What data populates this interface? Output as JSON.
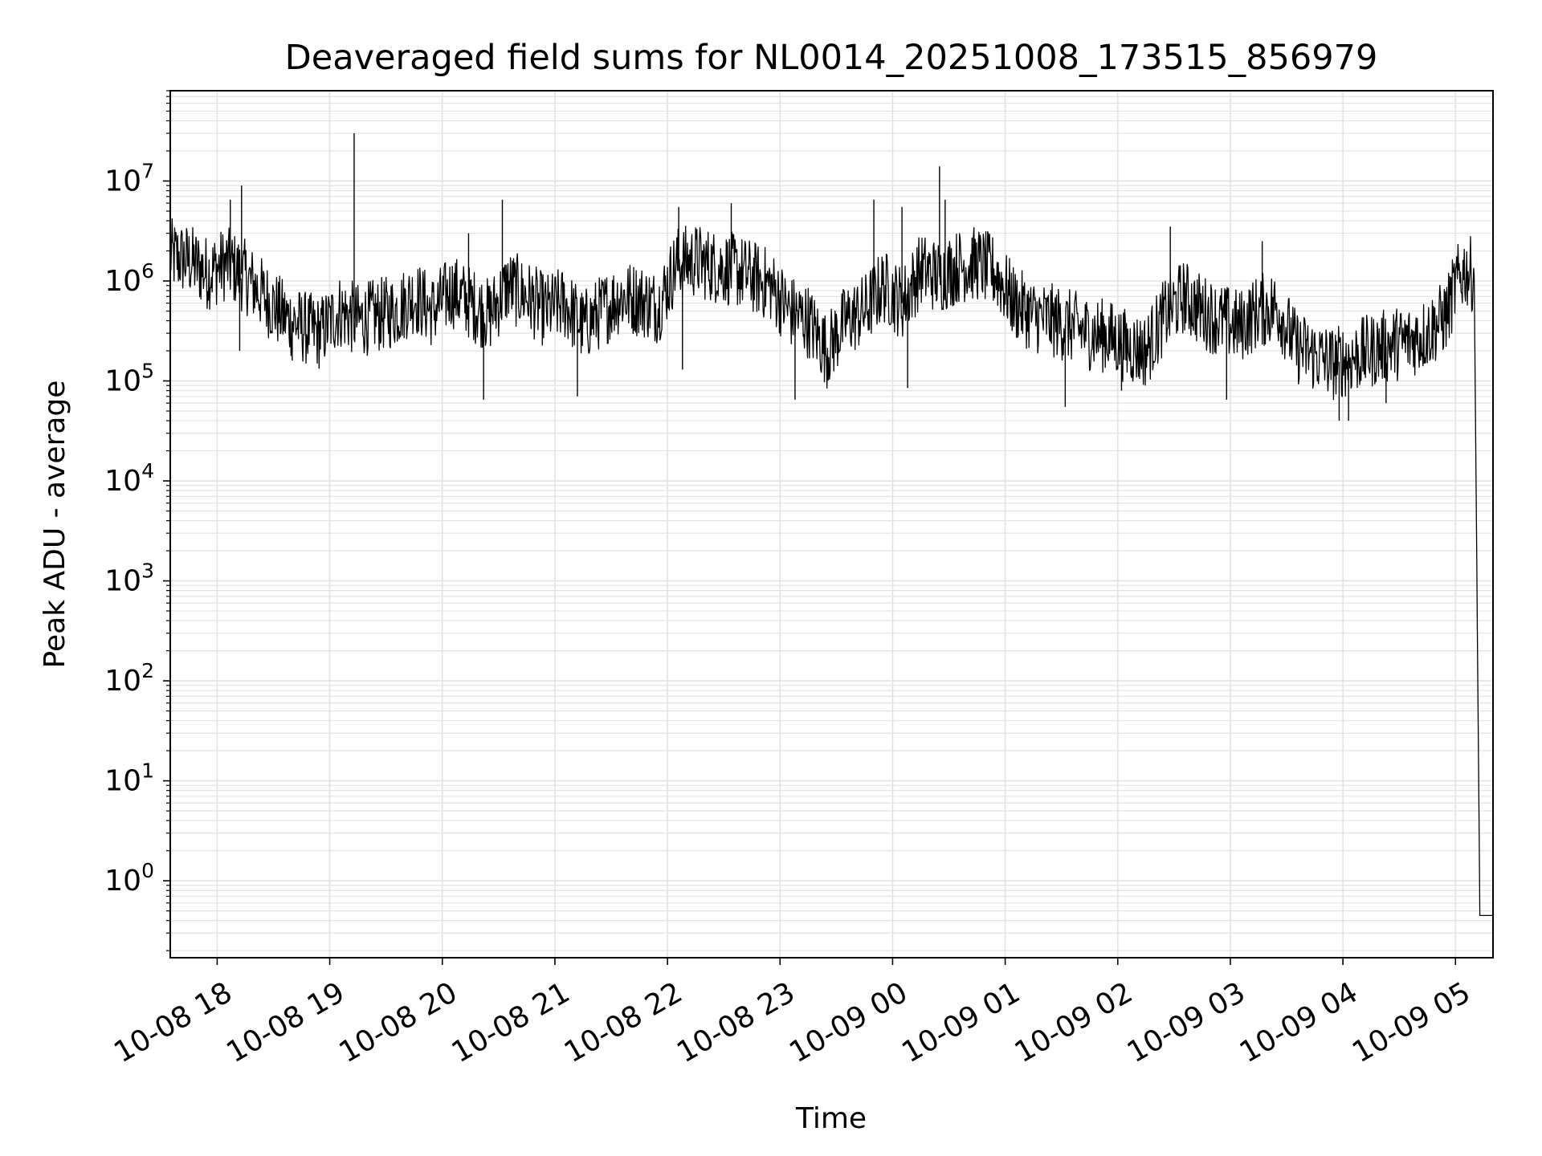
{
  "chart_data": {
    "type": "line",
    "title": "Deaveraged field sums for NL0014_20251008_173515_856979",
    "xlabel": "Time",
    "ylabel": "Peak ADU - average",
    "yscale": "log",
    "ylim": [
      0.17,
      80000000
    ],
    "xlim": [
      "10-08 17:35",
      "10-09 05:20"
    ],
    "x_ticks": [
      "10-08 18",
      "10-08 19",
      "10-08 20",
      "10-08 21",
      "10-08 22",
      "10-08 23",
      "10-09 00",
      "10-09 01",
      "10-09 02",
      "10-09 03",
      "10-09 04",
      "10-09 05"
    ],
    "y_ticks": [
      {
        "base": "10",
        "exp": "0"
      },
      {
        "base": "10",
        "exp": "1"
      },
      {
        "base": "10",
        "exp": "2"
      },
      {
        "base": "10",
        "exp": "3"
      },
      {
        "base": "10",
        "exp": "4"
      },
      {
        "base": "10",
        "exp": "5"
      },
      {
        "base": "10",
        "exp": "6"
      },
      {
        "base": "10",
        "exp": "7"
      }
    ],
    "grid": true,
    "line_color": "#000000",
    "grid_color": "#e3e3e3",
    "series": [
      {
        "x": [
          "10-08 17:35",
          "10-08 17:45",
          "10-08 17:55",
          "10-08 18:05",
          "10-08 18:15",
          "10-08 18:25",
          "10-08 18:35",
          "10-08 18:45",
          "10-08 18:55",
          "10-08 19:05",
          "10-08 19:15",
          "10-08 19:25",
          "10-08 19:35",
          "10-08 19:45",
          "10-08 19:55",
          "10-08 20:05",
          "10-08 20:15",
          "10-08 20:25",
          "10-08 20:35",
          "10-08 20:45",
          "10-08 20:55",
          "10-08 21:05",
          "10-08 21:15",
          "10-08 21:25",
          "10-08 21:35",
          "10-08 21:45",
          "10-08 21:55",
          "10-08 22:05",
          "10-08 22:15",
          "10-08 22:25",
          "10-08 22:35",
          "10-08 22:45",
          "10-08 22:55",
          "10-08 23:05",
          "10-08 23:15",
          "10-08 23:25",
          "10-08 23:35",
          "10-08 23:45",
          "10-08 23:55",
          "10-09 00:05",
          "10-09 00:15",
          "10-09 00:25",
          "10-09 00:35",
          "10-09 00:45",
          "10-09 00:55",
          "10-09 01:05",
          "10-09 01:15",
          "10-09 01:25",
          "10-09 01:35",
          "10-09 01:45",
          "10-09 01:55",
          "10-09 02:05",
          "10-09 02:15",
          "10-09 02:25",
          "10-09 02:35",
          "10-09 02:45",
          "10-09 02:55",
          "10-09 03:05",
          "10-09 03:15",
          "10-09 03:25",
          "10-09 03:35",
          "10-09 03:45",
          "10-09 03:55",
          "10-09 04:05",
          "10-09 04:15",
          "10-09 04:25",
          "10-09 04:35",
          "10-09 04:45",
          "10-09 04:55",
          "10-09 05:00",
          "10-09 05:05",
          "10-09 05:10",
          "10-09 05:13",
          "10-09 05:15",
          "10-09 05:20"
        ],
        "y": [
          1800000,
          1600000,
          1200000,
          1500000,
          1100000,
          700000,
          450000,
          350000,
          300000,
          500000,
          400000,
          450000,
          500000,
          700000,
          500000,
          800000,
          600000,
          450000,
          900000,
          700000,
          500000,
          600000,
          350000,
          500000,
          700000,
          650000,
          550000,
          1500000,
          1600000,
          1400000,
          1300000,
          1100000,
          900000,
          500000,
          400000,
          200000,
          400000,
          500000,
          900000,
          600000,
          1300000,
          1100000,
          1400000,
          1500000,
          1200000,
          600000,
          450000,
          400000,
          350000,
          300000,
          280000,
          220000,
          200000,
          450000,
          700000,
          500000,
          400000,
          350000,
          500000,
          550000,
          220000,
          180000,
          150000,
          170000,
          200000,
          230000,
          250000,
          300000,
          450000,
          900000,
          1300000,
          1100000,
          0.45,
          0.45,
          0.45
        ]
      }
    ],
    "spikes": [
      {
        "x": "10-08 18:07",
        "y": 6500000
      },
      {
        "x": "10-08 18:13",
        "y": 9000000
      },
      {
        "x": "10-08 19:13",
        "y": 30000000
      },
      {
        "x": "10-08 20:14",
        "y": 3000000
      },
      {
        "x": "10-08 20:32",
        "y": 6500000
      },
      {
        "x": "10-08 22:06",
        "y": 5500000
      },
      {
        "x": "10-08 22:34",
        "y": 6000000
      },
      {
        "x": "10-08 23:50",
        "y": 6500000
      },
      {
        "x": "10-09 00:05",
        "y": 5500000
      },
      {
        "x": "10-09 00:25",
        "y": 14000000
      },
      {
        "x": "10-09 00:28",
        "y": 6500000
      },
      {
        "x": "10-09 02:28",
        "y": 3500000
      },
      {
        "x": "10-09 03:17",
        "y": 2500000
      }
    ],
    "dips": [
      {
        "x": "10-08 18:12",
        "y": 200000
      },
      {
        "x": "10-08 18:40",
        "y": 160000
      },
      {
        "x": "10-08 20:22",
        "y": 65000
      },
      {
        "x": "10-08 21:12",
        "y": 70000
      },
      {
        "x": "10-08 22:08",
        "y": 130000
      },
      {
        "x": "10-08 23:08",
        "y": 65000
      },
      {
        "x": "10-09 00:08",
        "y": 85000
      },
      {
        "x": "10-09 01:32",
        "y": 55000
      },
      {
        "x": "10-09 02:02",
        "y": 80000
      },
      {
        "x": "10-09 02:58",
        "y": 65000
      },
      {
        "x": "10-09 03:58",
        "y": 40000
      },
      {
        "x": "10-09 04:03",
        "y": 40000
      },
      {
        "x": "10-09 04:23",
        "y": 60000
      }
    ]
  }
}
